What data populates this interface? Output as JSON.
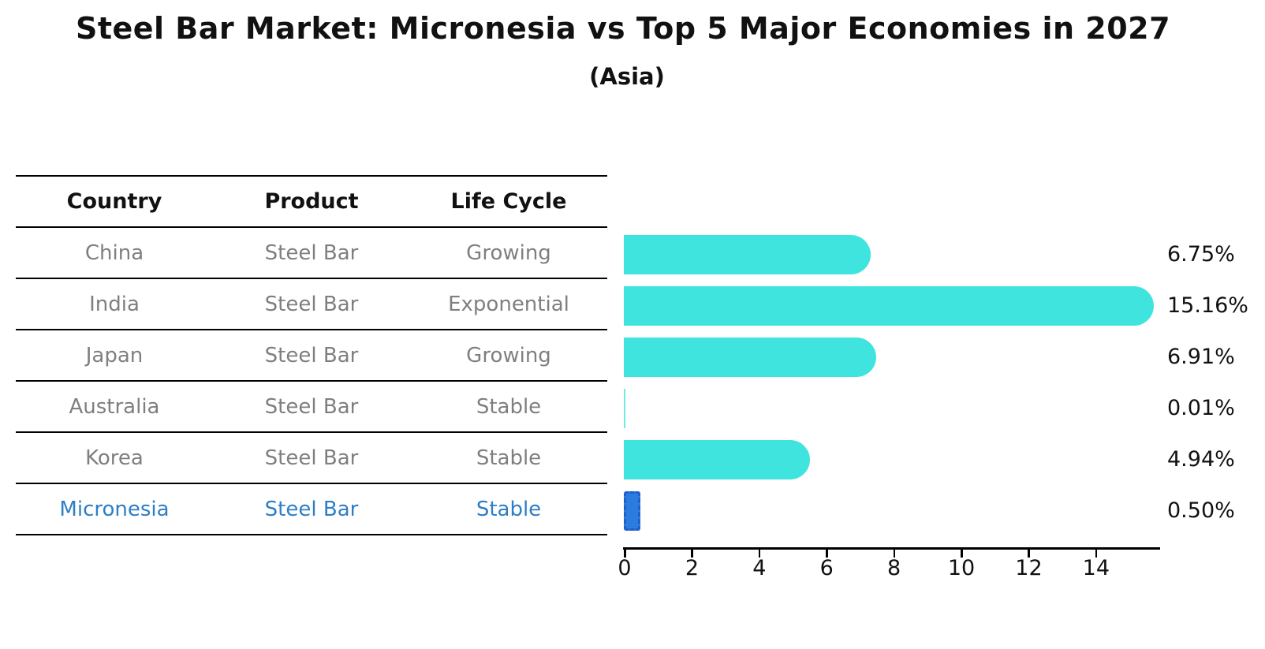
{
  "title": "Steel Bar Market: Micronesia vs Top 5 Major Economies in 2027",
  "subtitle": "(Asia)",
  "table": {
    "headers": [
      "Country",
      "Product",
      "Life Cycle"
    ],
    "rows": [
      {
        "country": "China",
        "product": "Steel Bar",
        "life_cycle": "Growing",
        "highlight": false
      },
      {
        "country": "India",
        "product": "Steel Bar",
        "life_cycle": "Exponential",
        "highlight": false
      },
      {
        "country": "Japan",
        "product": "Steel Bar",
        "life_cycle": "Growing",
        "highlight": false
      },
      {
        "country": "Australia",
        "product": "Steel Bar",
        "life_cycle": "Stable",
        "highlight": false
      },
      {
        "country": "Korea",
        "product": "Steel Bar",
        "life_cycle": "Stable",
        "highlight": false
      },
      {
        "country": "Micronesia",
        "product": "Steel Bar",
        "life_cycle": "Stable",
        "highlight": true
      }
    ]
  },
  "chart_data": {
    "type": "bar",
    "orientation": "horizontal",
    "title": "Steel Bar Market: Micronesia vs Top 5 Major Economies in 2027",
    "subtitle": "(Asia)",
    "categories": [
      "China",
      "India",
      "Japan",
      "Australia",
      "Korea",
      "Micronesia"
    ],
    "values": [
      6.75,
      15.16,
      6.91,
      0.01,
      4.94,
      0.5
    ],
    "value_labels": [
      "6.75%",
      "15.16%",
      "6.91%",
      "0.01%",
      "4.94%",
      "0.50%"
    ],
    "x_ticks": [
      0,
      2,
      4,
      6,
      8,
      10,
      12,
      14
    ],
    "xlim": [
      0,
      15.97
    ],
    "xlabel": "",
    "ylabel": "",
    "grid": false,
    "legend": false,
    "highlight_category": "Micronesia",
    "bar_color": "#40E4DE",
    "highlight_bar_color": "#2C7BDF",
    "highlight_border_color": "#1E5FCC",
    "highlight_text_color": "#2E7EC6",
    "row_text_color": "#7f7f7f"
  }
}
